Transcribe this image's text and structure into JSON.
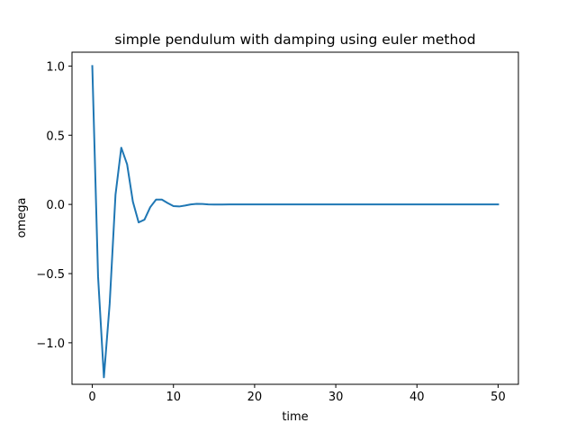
{
  "chart_data": {
    "type": "line",
    "title": "simple pendulum with damping using euler method",
    "xlabel": "time",
    "ylabel": "omega",
    "xlim": [
      -2.5,
      52.5
    ],
    "ylim": [
      -1.3,
      1.1
    ],
    "xticks": [
      0,
      10,
      20,
      30,
      40,
      50
    ],
    "xtick_labels": [
      "0",
      "10",
      "20",
      "30",
      "40",
      "50"
    ],
    "yticks": [
      -1.0,
      -0.5,
      0.0,
      0.5,
      1.0
    ],
    "ytick_labels": [
      "−1.0",
      "−0.5",
      "0.0",
      "0.5",
      "1.0"
    ],
    "grid": false,
    "line_color": "#1f77b4",
    "series": [
      {
        "x": [
          0,
          0.71,
          1.43,
          2.14,
          2.86,
          3.57,
          4.29,
          5.0,
          5.71,
          6.43,
          7.14,
          7.86,
          8.57,
          9.29,
          10.0,
          10.71,
          11.43,
          12.14,
          12.86,
          13.57,
          14.29,
          15.0,
          16.0,
          17.0,
          18.0,
          19.0,
          20.0,
          25.0,
          30.0,
          35.0,
          40.0,
          45.0,
          50.0
        ],
        "y": [
          1.0,
          -0.52,
          -1.25,
          -0.72,
          0.07,
          0.41,
          0.29,
          0.02,
          -0.13,
          -0.11,
          -0.02,
          0.035,
          0.035,
          0.01,
          -0.012,
          -0.015,
          -0.008,
          0.0,
          0.004,
          0.003,
          0.0,
          -0.001,
          -0.001,
          0.0,
          0.0,
          0.0,
          0.0,
          0.0,
          0.0,
          0.0,
          0.0,
          0.0,
          0.0
        ]
      }
    ]
  }
}
